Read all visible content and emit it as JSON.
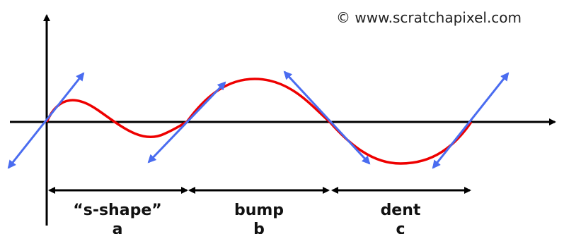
{
  "copyright": "© www.scratchapixel.com",
  "segments": [
    {
      "label": "“s-shape”",
      "letter": "a"
    },
    {
      "label": "bump",
      "letter": "b"
    },
    {
      "label": "dent",
      "letter": "c"
    }
  ],
  "colors": {
    "axis": "#000000",
    "curve": "#ee0000",
    "tangent": "#4a6cf0",
    "text": "#111111"
  }
}
